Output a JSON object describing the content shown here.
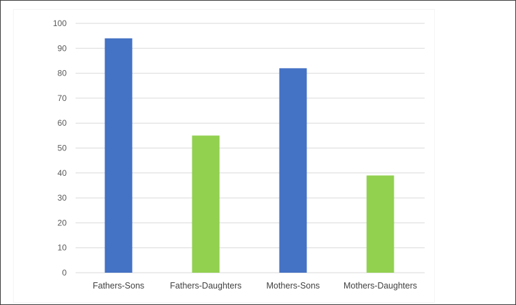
{
  "chart_data": {
    "type": "bar",
    "title": "",
    "xlabel": "",
    "ylabel": "",
    "ylim": [
      0,
      100
    ],
    "yticks": [
      0,
      10,
      20,
      30,
      40,
      50,
      60,
      70,
      80,
      90,
      100
    ],
    "grid": true,
    "legend": "none",
    "categories": [
      "Fathers-Sons",
      "Fathers-Daughters",
      "Mothers-Sons",
      "Mothers-Daughters"
    ],
    "values": [
      94,
      55,
      82,
      39
    ],
    "bar_colors": [
      "#4472c4",
      "#92d050",
      "#4472c4",
      "#92d050"
    ]
  },
  "colors": {
    "blue": "#4472c4",
    "green": "#92d050",
    "gridline": "#d9d9d9",
    "axis_text": "#595959"
  }
}
